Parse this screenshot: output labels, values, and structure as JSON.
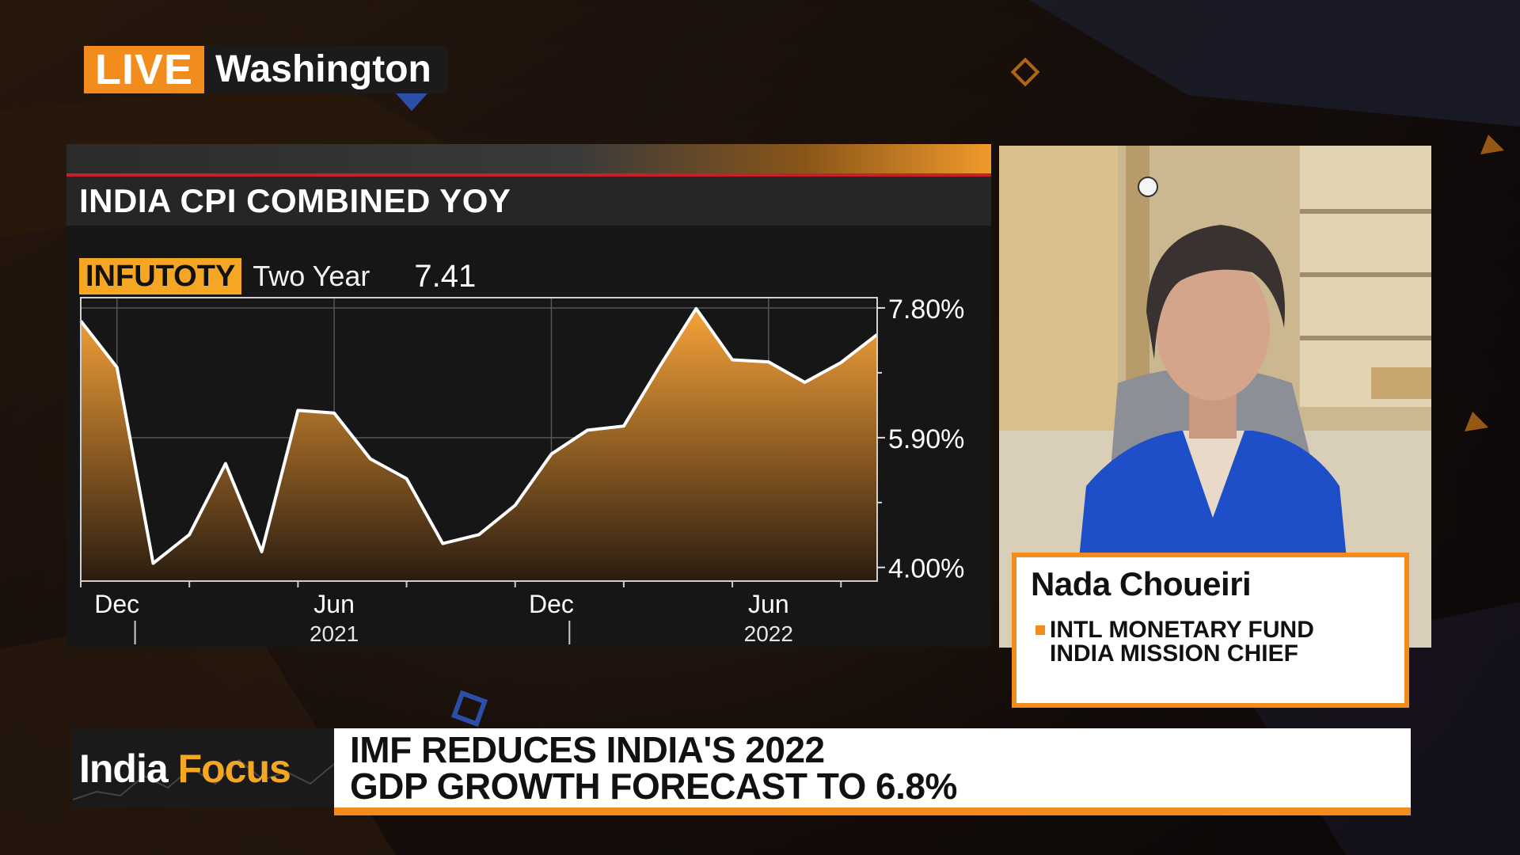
{
  "live_bug": {
    "tag": "LIVE",
    "location": "Washington"
  },
  "chart_header": {
    "title": "INDIA CPI COMBINED YOY",
    "ticker": "INFUTOTY",
    "period": "Two Year",
    "last_value": "7.41"
  },
  "chart_data": {
    "type": "area",
    "title": "INDIA CPI COMBINED YOY",
    "x": [
      "2020-11",
      "2020-12",
      "2021-01",
      "2021-02",
      "2021-03",
      "2021-04",
      "2021-05",
      "2021-06",
      "2021-07",
      "2021-08",
      "2021-09",
      "2021-10",
      "2021-11",
      "2021-12",
      "2022-01",
      "2022-02",
      "2022-03",
      "2022-04",
      "2022-05",
      "2022-06",
      "2022-07",
      "2022-08",
      "2022-09"
    ],
    "values": [
      7.61,
      6.93,
      4.06,
      4.48,
      5.52,
      4.23,
      6.3,
      6.26,
      5.59,
      5.3,
      4.35,
      4.48,
      4.91,
      5.66,
      6.01,
      6.07,
      6.95,
      7.79,
      7.04,
      7.01,
      6.71,
      7.0,
      7.41
    ],
    "y_ticks": [
      "7.80%",
      "5.90%",
      "4.00%"
    ],
    "ylim": [
      3.8,
      7.95
    ],
    "x_tick_labels": [
      "Dec",
      "Jun",
      "Dec",
      "Jun"
    ],
    "x_year_labels": [
      "2021",
      "2022"
    ],
    "fill_color": "#f29a2e",
    "line_color": "#ffffff",
    "grid": true
  },
  "guest": {
    "name": "Nada Choueiri",
    "title_line1": "INTL MONETARY FUND",
    "title_line2": "INDIA MISSION CHIEF"
  },
  "show": {
    "name_part1": "India",
    "name_part2": "Focus"
  },
  "headline": {
    "line1": "IMF REDUCES INDIA'S 2022",
    "line2": "GDP GROWTH FORECAST TO 6.8%"
  },
  "colors": {
    "accent": "#f28c1c",
    "ticker_bg": "#f5a623",
    "alert_red": "#c8202a"
  }
}
